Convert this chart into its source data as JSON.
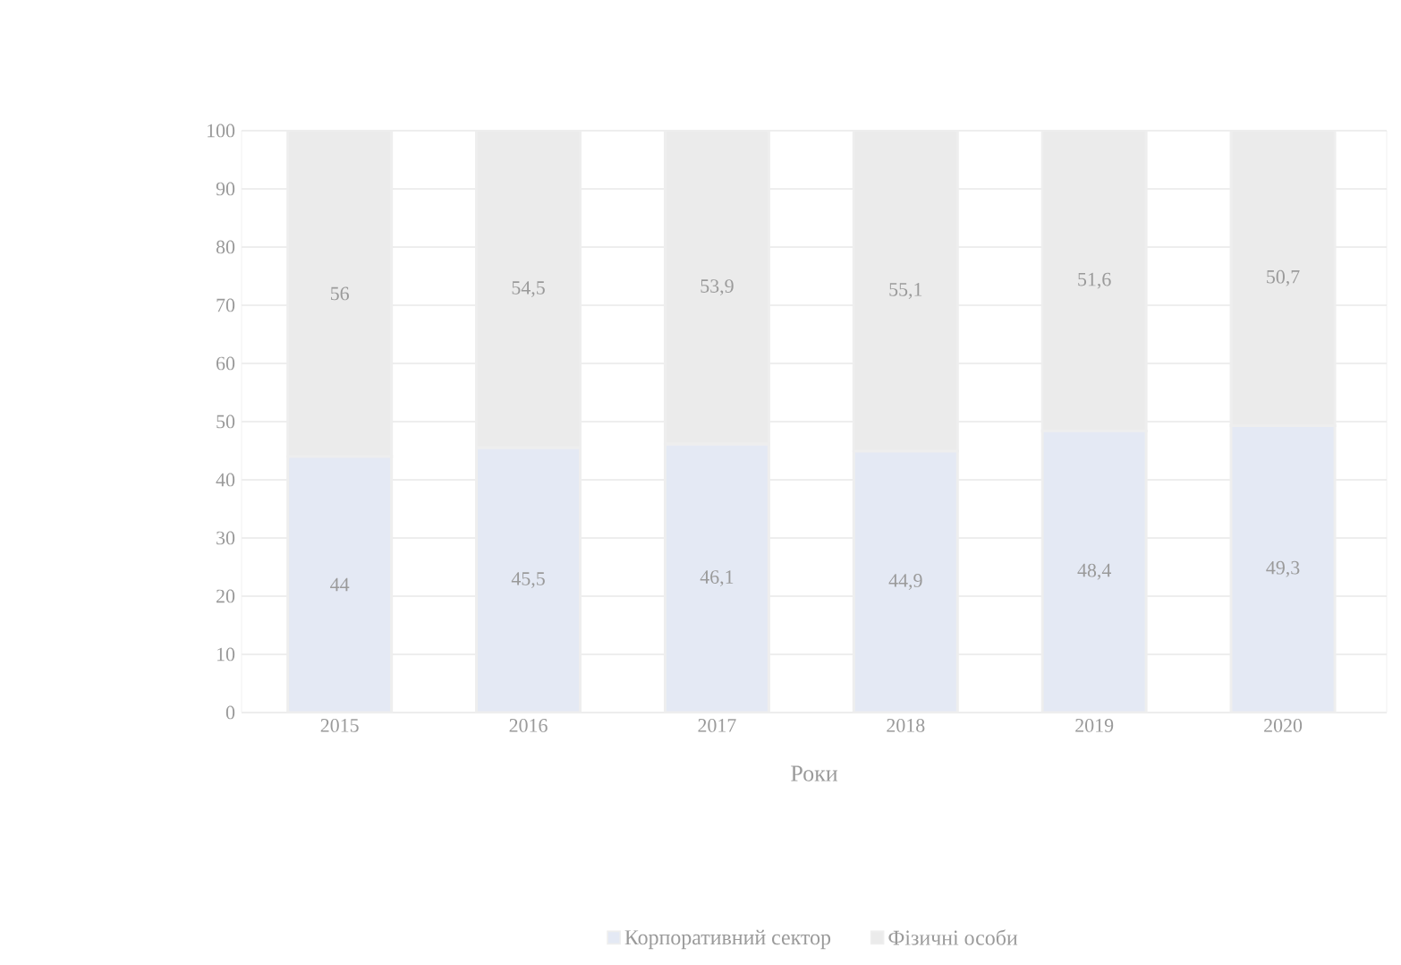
{
  "chart_data": {
    "type": "bar",
    "stacked": true,
    "xlabel": "Роки",
    "categories": [
      "2015",
      "2016",
      "2017",
      "2018",
      "2019",
      "2020"
    ],
    "series": [
      {
        "name": "Корпоративний сектор",
        "color": "#e4e9f4",
        "values": [
          44,
          45.5,
          46.1,
          44.9,
          48.4,
          49.3
        ],
        "value_labels": [
          "44",
          "45,5",
          "46,1",
          "44,9",
          "48,4",
          "49,3"
        ]
      },
      {
        "name": "Фізичні особи",
        "color": "#ebebeb",
        "values": [
          56,
          54.5,
          53.9,
          55.1,
          51.6,
          50.7
        ],
        "value_labels": [
          "56",
          "54,5",
          "53,9",
          "55,1",
          "51,6",
          "50,7"
        ]
      }
    ],
    "ylim": [
      0,
      100
    ],
    "yticks": [
      0,
      10,
      20,
      30,
      40,
      50,
      60,
      70,
      80,
      90,
      100
    ],
    "grid": "y",
    "legend": "bottom"
  }
}
